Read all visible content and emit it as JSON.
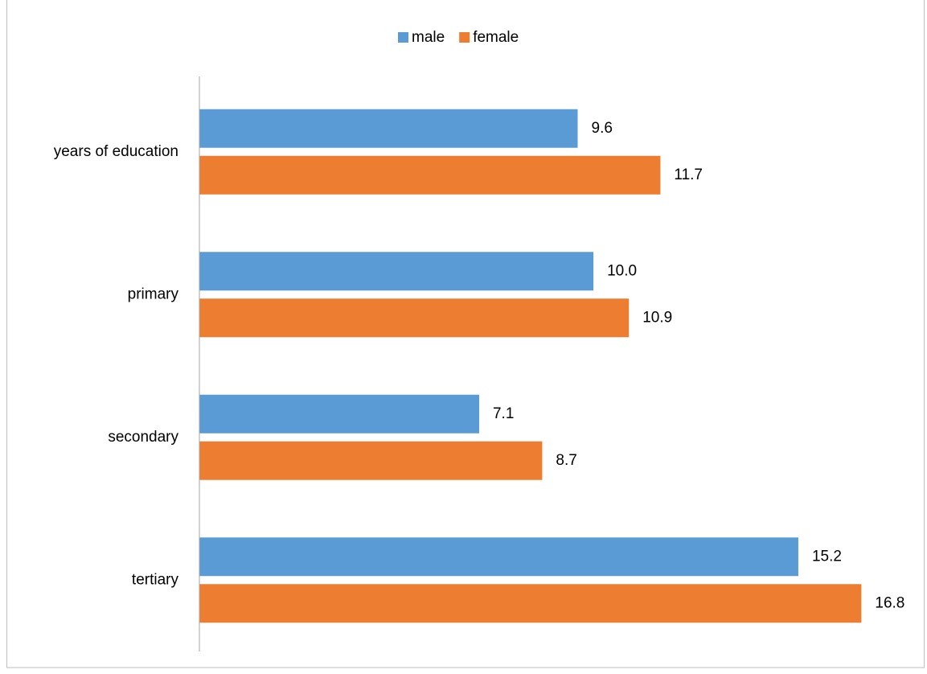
{
  "chart_data": {
    "type": "bar",
    "orientation": "horizontal",
    "categories": [
      "years of education",
      "primary",
      "secondary",
      "tertiary"
    ],
    "series": [
      {
        "name": "male",
        "color": "#5b9bd5",
        "values": [
          9.6,
          10.0,
          7.1,
          15.2
        ],
        "value_labels": [
          "9.6",
          "10.0",
          "7.1",
          "15.2"
        ]
      },
      {
        "name": "female",
        "color": "#ed7d31",
        "values": [
          11.7,
          10.9,
          8.7,
          16.8
        ],
        "value_labels": [
          "11.7",
          "10.9",
          "8.7",
          "16.8"
        ]
      }
    ],
    "xlim": [
      0,
      18.2
    ],
    "legend": "top"
  }
}
